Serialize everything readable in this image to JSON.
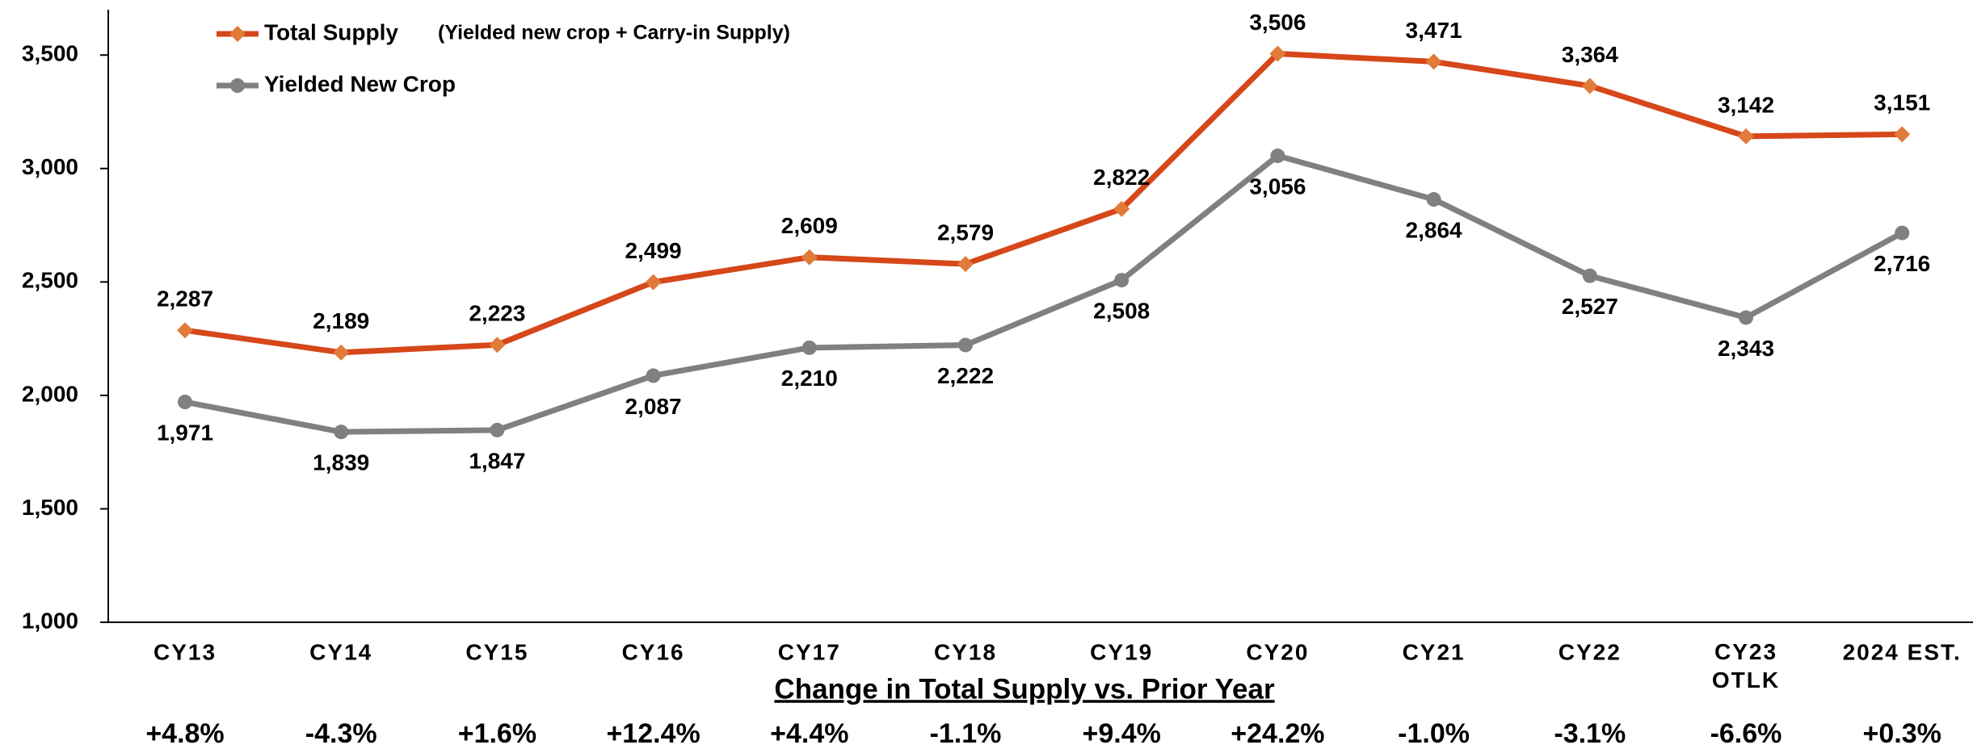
{
  "chart_data": {
    "type": "line",
    "categories": [
      "CY13",
      "CY14",
      "CY15",
      "CY16",
      "CY17",
      "CY18",
      "CY19",
      "CY20",
      "CY21",
      "CY22",
      "CY23\nOTLK",
      "2024 EST."
    ],
    "series": [
      {
        "name": "Total Supply",
        "note": "(Yielded new crop + Carry-in Supply)",
        "color": "#d6471a",
        "marker_color": "#e07b3a",
        "marker": "diamond",
        "label_position": "above",
        "values": [
          2287,
          2189,
          2223,
          2499,
          2609,
          2579,
          2822,
          3506,
          3471,
          3364,
          3142,
          3151
        ],
        "value_labels": [
          "2,287",
          "2,189",
          "2,223",
          "2,499",
          "2,609",
          "2,579",
          "2,822",
          "3,506",
          "3,471",
          "3,364",
          "3,142",
          "3,151"
        ]
      },
      {
        "name": "Yielded New Crop",
        "color": "#808080",
        "marker_color": "#808080",
        "marker": "circle",
        "label_position": "below",
        "values": [
          1971,
          1839,
          1847,
          2087,
          2210,
          2222,
          2508,
          3056,
          2864,
          2527,
          2343,
          2716
        ],
        "value_labels": [
          "1,971",
          "1,839",
          "1,847",
          "2,087",
          "2,210",
          "2,222",
          "2,508",
          "3,056",
          "2,864",
          "2,527",
          "2,343",
          "2,716"
        ]
      }
    ],
    "ylim": [
      1000,
      3700
    ],
    "yticks": [
      {
        "value": 1000,
        "label": "1,000"
      },
      {
        "value": 1500,
        "label": "1,500"
      },
      {
        "value": 2000,
        "label": "2,000"
      },
      {
        "value": 2500,
        "label": "2,500"
      },
      {
        "value": 3000,
        "label": "3,000"
      },
      {
        "value": 3500,
        "label": "3,500"
      }
    ],
    "grid": false,
    "subtitle": "Change in Total Supply vs. Prior Year",
    "change_labels": [
      "+4.8%",
      "-4.3%",
      "+1.6%",
      "+12.4%",
      "+4.4%",
      "-1.1%",
      "+9.4%",
      "+24.2%",
      "-1.0%",
      "-3.1%",
      "-6.6%",
      "+0.3%"
    ],
    "change_colors": {
      "positive": "#1a1a1a",
      "negative": "#ff0000"
    }
  }
}
